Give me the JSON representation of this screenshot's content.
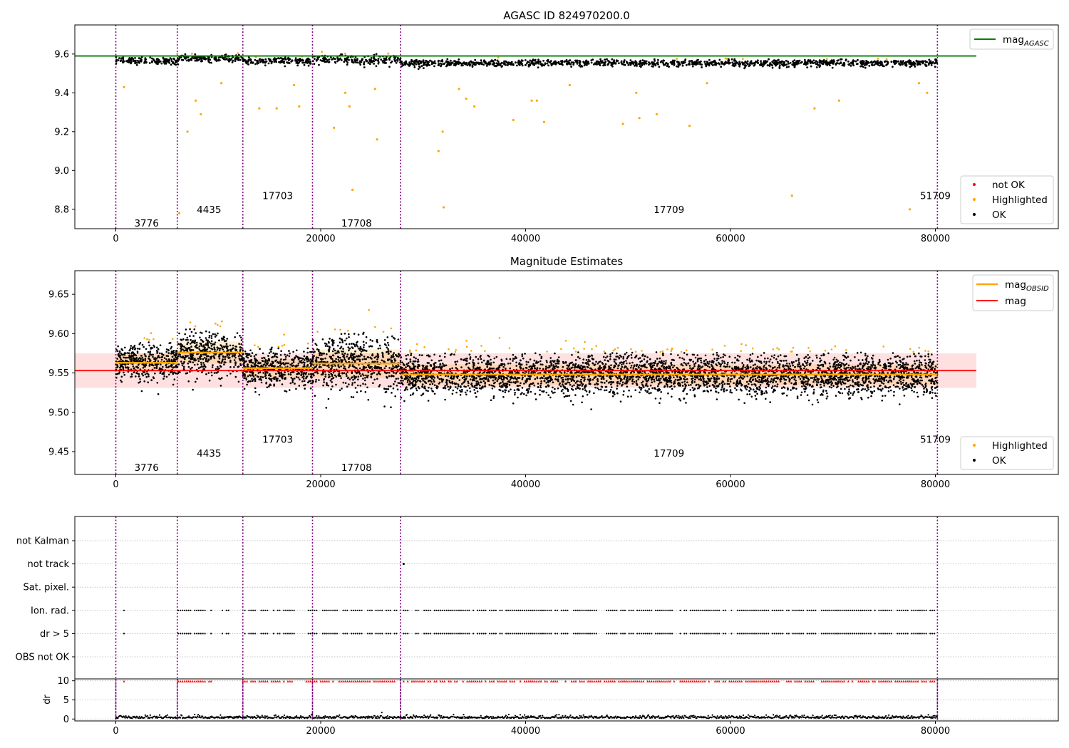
{
  "chart_data": [
    {
      "type": "scatter",
      "title": "AGASC ID 824970200.0",
      "xlabel": "",
      "ylabel": "",
      "xlim": [
        -4000,
        92000
      ],
      "ylim": [
        8.7,
        9.75
      ],
      "xticks": [
        "0",
        "20000",
        "40000",
        "60000",
        "80000"
      ],
      "yticks": [
        "8.8",
        "9.0",
        "9.2",
        "9.4",
        "9.6"
      ],
      "reference_lines": [
        {
          "name": "mag_AGASC",
          "value": 9.59,
          "x_range": [
            -4000,
            84000
          ],
          "color": "#008000"
        }
      ],
      "observation_boundaries": [
        0,
        6000,
        12400,
        19200,
        27800,
        80200
      ],
      "observation_labels": [
        {
          "text": "3776",
          "x": 3000,
          "y": 8.73
        },
        {
          "text": "4435",
          "x": 9100,
          "y": 8.8
        },
        {
          "text": "17703",
          "x": 15800,
          "y": 8.87
        },
        {
          "text": "17708",
          "x": 23500,
          "y": 8.73
        },
        {
          "text": "17709",
          "x": 54000,
          "y": 8.8
        },
        {
          "text": "51709",
          "x": 80000,
          "y": 8.87
        }
      ],
      "series": [
        {
          "name": "not OK",
          "color": "#ff0000",
          "values": []
        },
        {
          "name": "Highlighted",
          "color": "#ffa500",
          "points": [
            [
              800,
              9.43
            ],
            [
              6200,
              8.78
            ],
            [
              7000,
              9.2
            ],
            [
              7800,
              9.36
            ],
            [
              8300,
              9.29
            ],
            [
              10300,
              9.45
            ],
            [
              14000,
              9.32
            ],
            [
              15700,
              9.32
            ],
            [
              17400,
              9.44
            ],
            [
              17900,
              9.33
            ],
            [
              21300,
              9.22
            ],
            [
              22400,
              9.4
            ],
            [
              22800,
              9.33
            ],
            [
              23100,
              8.9
            ],
            [
              25300,
              9.42
            ],
            [
              25500,
              9.16
            ],
            [
              31500,
              9.1
            ],
            [
              31900,
              9.2
            ],
            [
              32000,
              8.81
            ],
            [
              33500,
              9.42
            ],
            [
              34200,
              9.37
            ],
            [
              35000,
              9.33
            ],
            [
              38800,
              9.26
            ],
            [
              40600,
              9.36
            ],
            [
              41100,
              9.36
            ],
            [
              41800,
              9.25
            ],
            [
              44300,
              9.44
            ],
            [
              49500,
              9.24
            ],
            [
              50800,
              9.4
            ],
            [
              51100,
              9.27
            ],
            [
              52800,
              9.29
            ],
            [
              56000,
              9.23
            ],
            [
              57700,
              9.45
            ],
            [
              66000,
              8.87
            ],
            [
              68200,
              9.32
            ],
            [
              70600,
              9.36
            ],
            [
              77500,
              8.8
            ],
            [
              78400,
              9.45
            ],
            [
              79200,
              9.4
            ]
          ]
        },
        {
          "name": "OK",
          "color": "#000000",
          "segments": [
            {
              "x": [
                0,
                6000
              ],
              "center": 9.565,
              "spread": 0.02
            },
            {
              "x": [
                6000,
                12400
              ],
              "center": 9.578,
              "spread": 0.02
            },
            {
              "x": [
                12400,
                19200
              ],
              "center": 9.563,
              "spread": 0.02
            },
            {
              "x": [
                19200,
                27800
              ],
              "center": 9.57,
              "spread": 0.03
            },
            {
              "x": [
                27800,
                80200
              ],
              "center": 9.553,
              "spread": 0.02
            }
          ]
        }
      ],
      "legend": {
        "lines": [
          "mag_AGASC"
        ],
        "markers": [
          "not OK",
          "Highlighted",
          "OK"
        ],
        "placement": [
          "upper right",
          "lower right"
        ]
      }
    },
    {
      "type": "scatter",
      "title": "Magnitude Estimates",
      "xlabel": "",
      "ylabel": "",
      "xlim": [
        -4000,
        92000
      ],
      "ylim": [
        9.421,
        9.68
      ],
      "xticks": [
        "0",
        "20000",
        "40000",
        "60000",
        "80000"
      ],
      "yticks": [
        "9.45",
        "9.50",
        "9.55",
        "9.60",
        "9.65"
      ],
      "reference_lines": [
        {
          "name": "mag",
          "value": 9.553,
          "x_range": [
            -4000,
            84000
          ],
          "band": [
            9.531,
            9.575
          ],
          "color": "#ff0000"
        }
      ],
      "obsid_means": [
        {
          "x": [
            0,
            6000
          ],
          "value": 9.563
        },
        {
          "x": [
            6000,
            12400
          ],
          "value": 9.576
        },
        {
          "x": [
            12400,
            19200
          ],
          "value": 9.556
        },
        {
          "x": [
            19200,
            27800
          ],
          "value": 9.562
        },
        {
          "x": [
            27800,
            80200
          ],
          "value": 9.548
        }
      ],
      "observation_boundaries": [
        0,
        6000,
        12400,
        19200,
        27800,
        80200
      ],
      "observation_labels": [
        {
          "text": "3776",
          "x": 3000,
          "y": 9.43
        },
        {
          "text": "4435",
          "x": 9100,
          "y": 9.448
        },
        {
          "text": "17703",
          "x": 15800,
          "y": 9.466
        },
        {
          "text": "17708",
          "x": 23500,
          "y": 9.43
        },
        {
          "text": "17709",
          "x": 54000,
          "y": 9.448
        },
        {
          "text": "51709",
          "x": 80000,
          "y": 9.466
        }
      ],
      "series": [
        {
          "name": "mag_OBSID",
          "color": "#ffa500"
        },
        {
          "name": "mag",
          "color": "#ff0000"
        },
        {
          "name": "Highlighted",
          "color": "#ffa500"
        },
        {
          "name": "OK",
          "color": "#000000"
        }
      ],
      "legend": {
        "lines": [
          "mag_OBSID",
          "mag"
        ],
        "markers": [
          "Highlighted",
          "OK"
        ],
        "placement": [
          "upper right",
          "lower right"
        ]
      }
    },
    {
      "type": "scatter",
      "title": "",
      "xlabel": "",
      "ylabel": "",
      "xlim": [
        -4000,
        92000
      ],
      "categories": [
        "not Kalman",
        "not track",
        "Sat. pixel.",
        "Ion. rad.",
        "dr > 5",
        "OBS not OK"
      ],
      "observation_boundaries": [
        0,
        6000,
        12400,
        19200,
        27800,
        80200
      ],
      "flag_points": [
        {
          "category": "not track",
          "x": [
            28100
          ]
        }
      ]
    },
    {
      "type": "scatter",
      "title": "",
      "xlabel": "",
      "ylabel": "dr",
      "xlim": [
        -4000,
        92000
      ],
      "ylim": [
        -0.5,
        10.5
      ],
      "xticks": [
        "0",
        "20000",
        "40000",
        "60000",
        "80000"
      ],
      "yticks": [
        "0",
        "5",
        "10"
      ],
      "observation_boundaries": [
        0,
        6000,
        12400,
        19200,
        27800,
        80200
      ]
    }
  ]
}
